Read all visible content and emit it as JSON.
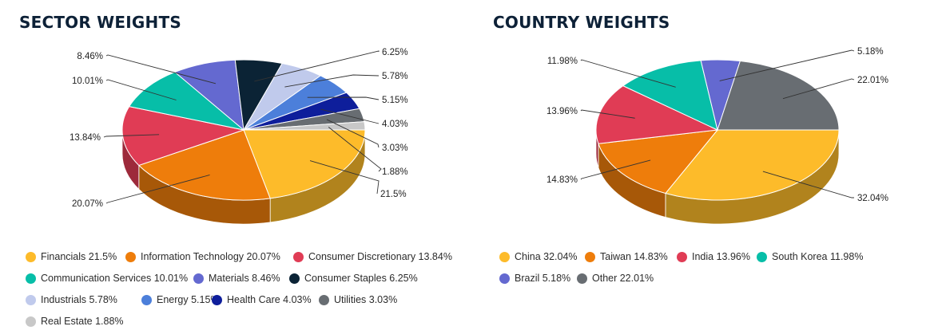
{
  "chart_data": [
    {
      "type": "pie",
      "title": "SECTOR WEIGHTS",
      "slices": [
        {
          "label": "Financials",
          "value": 21.5,
          "display": "21.5%",
          "data_label": "21.5%",
          "color": "#FDBB2A"
        },
        {
          "label": "Information Technology",
          "value": 20.07,
          "display": "20.07%",
          "data_label": "20.07%",
          "color": "#EE7D0B"
        },
        {
          "label": "Consumer Discretionary",
          "value": 13.84,
          "display": "13.84%",
          "data_label": "13.84%",
          "color": "#E03C55"
        },
        {
          "label": "Communication Services",
          "value": 10.01,
          "display": "10.01%",
          "data_label": "10.01%",
          "color": "#07BEA8"
        },
        {
          "label": "Materials",
          "value": 8.46,
          "display": "8.46%",
          "data_label": "8.46%",
          "color": "#6469D0"
        },
        {
          "label": "Consumer Staples",
          "value": 6.25,
          "display": "6.25%",
          "data_label": "6.25%",
          "color": "#0B2335"
        },
        {
          "label": "Industrials",
          "value": 5.78,
          "display": "5.78%",
          "data_label": "5.78%",
          "color": "#C0CAEC"
        },
        {
          "label": "Energy",
          "value": 5.15,
          "display": "5.15%",
          "data_label": "5.15%",
          "color": "#4C7FDA"
        },
        {
          "label": "Health Care",
          "value": 4.03,
          "display": "4.03%",
          "data_label": "4.03%",
          "color": "#0E1E9B"
        },
        {
          "label": "Utilities",
          "value": 3.03,
          "display": "3.03%",
          "data_label": "3.03%",
          "color": "#686D72"
        },
        {
          "label": "Real Estate",
          "value": 1.88,
          "display": "1.88%",
          "data_label": "1.88%",
          "color": "#C8C8C8"
        }
      ]
    },
    {
      "type": "pie",
      "title": "COUNTRY WEIGHTS",
      "slices": [
        {
          "label": "China",
          "value": 32.04,
          "display": "32.04%",
          "data_label": "32.04%",
          "color": "#FDBB2A"
        },
        {
          "label": "Taiwan",
          "value": 14.83,
          "display": "14.83%",
          "data_label": "14.83%",
          "color": "#EE7D0B"
        },
        {
          "label": "India",
          "value": 13.96,
          "display": "13.96%",
          "data_label": "13.96%",
          "color": "#E03C55"
        },
        {
          "label": "South Korea",
          "value": 11.98,
          "display": "11.98%",
          "data_label": "11.98%",
          "color": "#07BEA8"
        },
        {
          "label": "Brazil",
          "value": 5.18,
          "display": "5.18%",
          "data_label": "5.18%",
          "color": "#6469D0"
        },
        {
          "label": "Other",
          "value": 22.01,
          "display": "22.01%",
          "data_label": "22.01%",
          "color": "#686D72"
        }
      ]
    }
  ]
}
